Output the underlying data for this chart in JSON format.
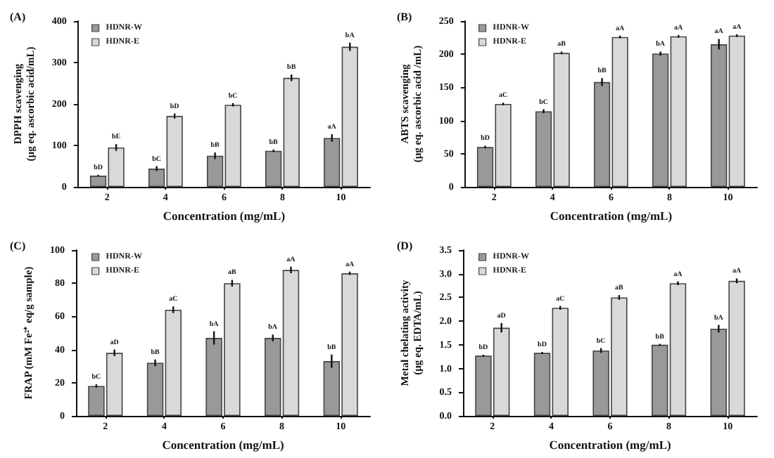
{
  "chart_data": [
    {
      "type": "bar",
      "title": "(A)",
      "xlabel": "Concentration (mg/mL)",
      "ylabel": "DPPH scavenging\n(µg eq. ascorbic acid/mL)",
      "categories": [
        "2",
        "4",
        "6",
        "8",
        "10"
      ],
      "ylim": [
        0,
        400
      ],
      "yticks": [
        0,
        100,
        200,
        300,
        400
      ],
      "grid": false,
      "legend": "top left",
      "series": [
        {
          "name": "HDNR-W",
          "color": "#999999",
          "values": [
            27,
            44,
            75,
            87,
            118
          ],
          "errors": [
            2,
            6,
            8,
            3,
            9
          ],
          "value_labels": [
            "bD",
            "bC",
            "bB",
            "bB",
            "aA"
          ]
        },
        {
          "name": "HDNR-E",
          "color": "#d9d9d9",
          "values": [
            95,
            171,
            198,
            263,
            338
          ],
          "errors": [
            8,
            6,
            4,
            8,
            10
          ],
          "value_labels": [
            "bE",
            "bD",
            "bC",
            "bB",
            "bA"
          ]
        }
      ]
    },
    {
      "type": "bar",
      "title": "(B)",
      "xlabel": "Concentration (mg/mL)",
      "ylabel": "ABTS scavenging\n(µg eq. ascorbic acid /mL)",
      "categories": [
        "2",
        "4",
        "6",
        "8",
        "10"
      ],
      "ylim": [
        0,
        250
      ],
      "yticks": [
        0,
        50,
        100,
        150,
        200,
        250
      ],
      "grid": false,
      "legend": "top left",
      "series": [
        {
          "name": "HDNR-W",
          "color": "#999999",
          "values": [
            60,
            114,
            158,
            201,
            215
          ],
          "errors": [
            2,
            3,
            6,
            3,
            8
          ],
          "value_labels": [
            "bD",
            "bC",
            "bB",
            "bA",
            "aA"
          ]
        },
        {
          "name": "HDNR-E",
          "color": "#d9d9d9",
          "values": [
            125,
            202,
            226,
            227,
            228
          ],
          "errors": [
            2,
            2,
            2,
            2,
            2
          ],
          "value_labels": [
            "aC",
            "aB",
            "aA",
            "aA",
            "aA"
          ]
        }
      ]
    },
    {
      "type": "bar",
      "title": "(C)",
      "xlabel": "Concentration (mg/mL)",
      "ylabel": "FRAP (mM Fe²⁺ eq/g sample)",
      "categories": [
        "2",
        "4",
        "6",
        "8",
        "10"
      ],
      "ylim": [
        0,
        100
      ],
      "yticks": [
        0,
        20,
        40,
        60,
        80,
        100
      ],
      "grid": false,
      "legend": "top left",
      "series": [
        {
          "name": "HDNR-W",
          "color": "#999999",
          "values": [
            18,
            32,
            47,
            47,
            33
          ],
          "errors": [
            1,
            2,
            4,
            2,
            4
          ],
          "value_labels": [
            "bC",
            "bB",
            "bA",
            "bA",
            "bB"
          ]
        },
        {
          "name": "HDNR-E",
          "color": "#d9d9d9",
          "values": [
            38,
            64,
            80,
            88,
            86
          ],
          "errors": [
            2,
            2,
            2,
            2,
            1
          ],
          "value_labels": [
            "aD",
            "aC",
            "aB",
            "aA",
            "aA"
          ]
        }
      ]
    },
    {
      "type": "bar",
      "title": "(D)",
      "xlabel": "Concentration (mg/mL)",
      "ylabel": "Metal chelating activity\n(µg eq. EDTA/mL)",
      "categories": [
        "2",
        "4",
        "6",
        "8",
        "10"
      ],
      "ylim": [
        0,
        3.5
      ],
      "yticks": [
        {
          "value": 0,
          "label": "0.0"
        },
        0.5,
        {
          "value": 1,
          "label": "1.0"
        },
        1.5,
        {
          "value": 2,
          "label": "2.0"
        },
        2.5,
        {
          "value": 3,
          "label": "3.0"
        },
        3.5
      ],
      "grid": false,
      "legend": "top left",
      "series": [
        {
          "name": "HDNR-W",
          "color": "#999999",
          "values": [
            1.27,
            1.33,
            1.38,
            1.5,
            1.84
          ],
          "errors": [
            0.02,
            0.02,
            0.05,
            0.02,
            0.08
          ],
          "value_labels": [
            "bD",
            "bD",
            "bC",
            "bB",
            "bA"
          ]
        },
        {
          "name": "HDNR-E",
          "color": "#d9d9d9",
          "values": [
            1.86,
            2.28,
            2.5,
            2.8,
            2.85
          ],
          "errors": [
            0.1,
            0.04,
            0.05,
            0.04,
            0.05
          ],
          "value_labels": [
            "aD",
            "aC",
            "aB",
            "aA",
            "aA"
          ]
        }
      ]
    }
  ]
}
